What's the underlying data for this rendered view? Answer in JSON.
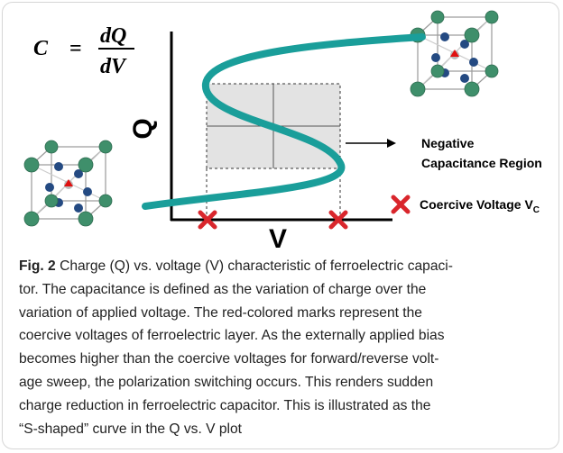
{
  "formula": {
    "lhs": "C",
    "eq": "=",
    "numerator": "dQ",
    "denominator": "dV"
  },
  "axes": {
    "y_label": "Q",
    "x_label": "V"
  },
  "annotations": {
    "region": [
      "Negative",
      "Capacitance Region"
    ],
    "coercive": "Coercive Voltage V",
    "coercive_sub": "C"
  },
  "caption": {
    "label": "Fig. 2",
    "lines": [
      " Charge (Q) vs. voltage (V) characteristic of ferroelectric capaci-",
      "tor. The capacitance is defined as the variation of charge over the",
      "variation of applied voltage. The red-colored marks represent the",
      "coercive voltages of ferroelectric layer. As the externally applied bias",
      "becomes higher than the coercive voltages for forward/reverse volt-",
      "age sweep, the polarization switching occurs. This renders sudden",
      "charge reduction in ferroelectric capacitor. This is illustrated as the",
      "“S-shaped” curve in the Q vs. V plot"
    ]
  }
}
